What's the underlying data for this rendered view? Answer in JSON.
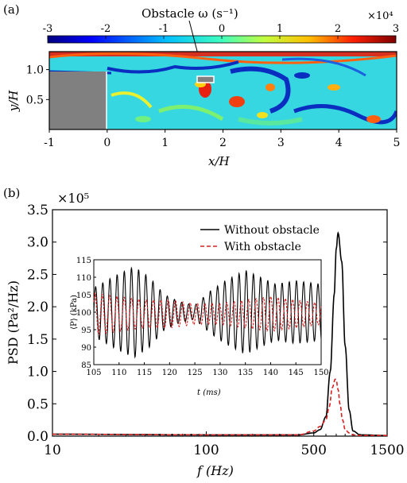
{
  "panel_a": {
    "label": "(a)",
    "colorbar": {
      "ticks": [
        "-3",
        "-2",
        "-1",
        "0",
        "1",
        "2",
        "3"
      ],
      "multiplier": "×10⁴",
      "title": "Obstacle  ω (s⁻¹)"
    },
    "ylabel": "y/H",
    "xlabel": "x/H",
    "yticks": [
      "1.0",
      "0.5"
    ],
    "xticks": [
      "-1",
      "0",
      "1",
      "2",
      "3",
      "4",
      "5"
    ]
  },
  "panel_b": {
    "label": "(b)",
    "ylabel": "PSD (Pa²/Hz)",
    "xlabel": "f (Hz)",
    "multiplier": "×10⁵",
    "yticks": [
      "0.0",
      "0.5",
      "1.0",
      "1.5",
      "2.0",
      "2.5",
      "3.0",
      "3.5"
    ],
    "xticks": [
      "10",
      "100",
      "500",
      "1500"
    ],
    "legend": [
      "Without obstacle",
      "With obstacle"
    ],
    "inset": {
      "ylabel": "⟨P⟩ (kPa)",
      "xlabel": "t (ms)",
      "yticks": [
        "115",
        "110",
        "105",
        "100",
        "95",
        "90",
        "85"
      ],
      "xticks": [
        "105",
        "110",
        "115",
        "120",
        "125",
        "130",
        "135",
        "140",
        "145",
        "150"
      ]
    }
  },
  "chart_data": [
    {
      "type": "heatmap",
      "title": "",
      "xlabel": "x/H",
      "ylabel": "y/H",
      "xlim": [
        -1,
        5
      ],
      "ylim": [
        0,
        1.3
      ],
      "color_label": "ω (s⁻¹)",
      "color_range": [
        -30000,
        30000
      ],
      "colormap": "jet",
      "annotation": "Obstacle"
    },
    {
      "type": "line",
      "title": "",
      "xlabel": "f (Hz)",
      "ylabel": "PSD (Pa²/Hz)",
      "x_scale": "log",
      "xlim": [
        10,
        1500
      ],
      "ylim": [
        0,
        350000
      ],
      "series": [
        {
          "name": "Without obstacle",
          "color": "#000000",
          "x": [
            10,
            100,
            400,
            500,
            550,
            600,
            640,
            680,
            700,
            720,
            760,
            800,
            850,
            900,
            1000,
            1500
          ],
          "y": [
            3000,
            2000,
            2000,
            5000,
            10000,
            30000,
            100000,
            220000,
            290000,
            314000,
            270000,
            140000,
            40000,
            8000,
            2000,
            1000
          ]
        },
        {
          "name": "With obstacle",
          "color": "#d62020",
          "x": [
            10,
            100,
            400,
            500,
            550,
            600,
            630,
            660,
            690,
            700,
            720,
            740,
            770,
            800,
            850,
            900,
            1000,
            1500
          ],
          "y": [
            3000,
            2000,
            2000,
            8000,
            15000,
            25000,
            45000,
            75000,
            88000,
            86000,
            72000,
            50000,
            25000,
            10000,
            5000,
            2000,
            1000,
            1000
          ]
        }
      ]
    },
    {
      "type": "line",
      "title": "",
      "xlabel": "t (ms)",
      "ylabel": "⟨P⟩ (kPa)",
      "xlim": [
        105,
        150
      ],
      "ylim": [
        85,
        115
      ],
      "series": [
        {
          "name": "Without obstacle",
          "color": "#000000",
          "mean": 100,
          "period_ms": 1.42,
          "amplitude_t": [
            105,
            110,
            113,
            116,
            119,
            122,
            125,
            128,
            131,
            135,
            138,
            141,
            145,
            150
          ],
          "amplitude": [
            7,
            11,
            13,
            10,
            5,
            3,
            2,
            6,
            9,
            12,
            10,
            8,
            9,
            8
          ]
        },
        {
          "name": "With obstacle",
          "color": "#d62020",
          "mean": 99.5,
          "period_ms": 1.45,
          "amplitude_t": [
            105,
            110,
            115,
            120,
            125,
            130,
            135,
            140,
            145,
            150
          ],
          "amplitude": [
            6,
            5,
            4,
            4,
            3,
            3,
            4,
            5,
            4,
            3
          ]
        }
      ]
    }
  ]
}
